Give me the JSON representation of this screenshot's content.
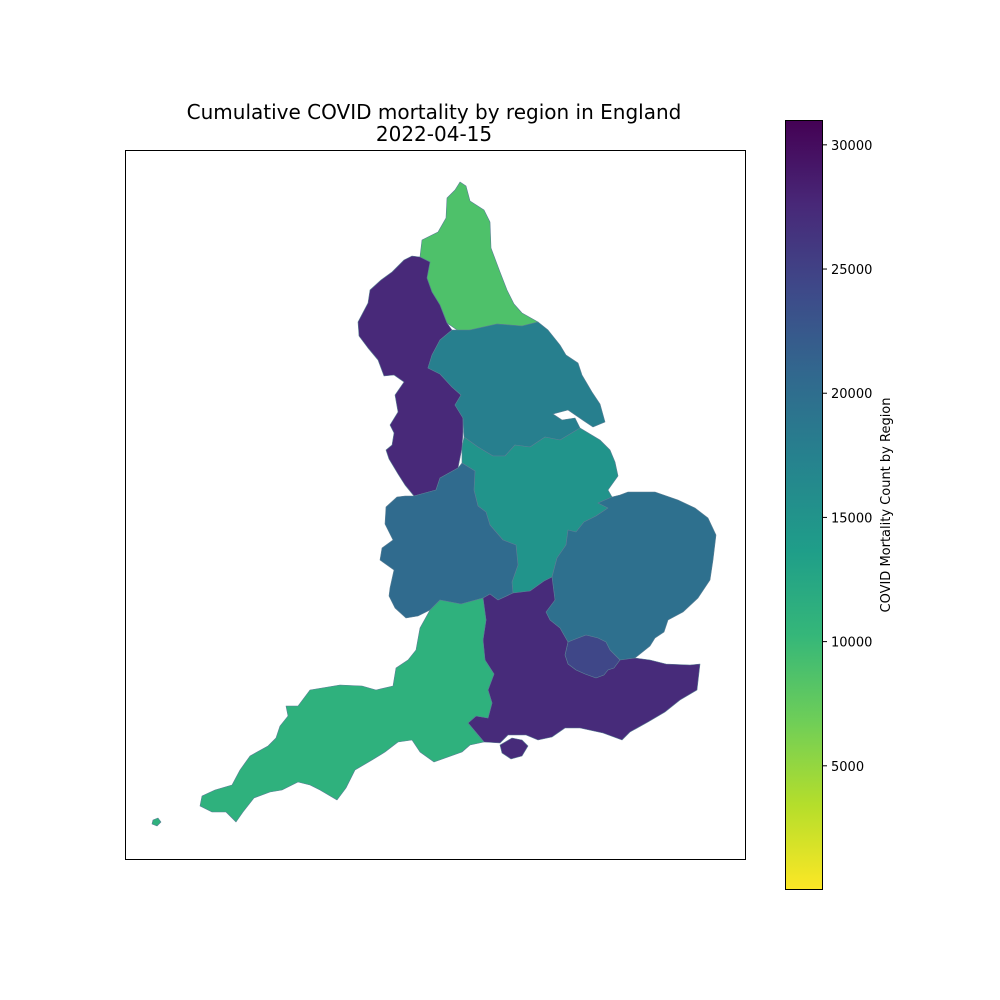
{
  "chart_data": {
    "type": "choropleth",
    "title_line1": "Cumulative COVID mortality by region in England",
    "title_line2": "2022-04-15",
    "colorbar": {
      "label": "COVID Mortality Count by Region",
      "range": [
        0,
        31000
      ],
      "ticks": [
        5000,
        10000,
        15000,
        20000,
        25000,
        30000
      ],
      "tick_labels": [
        "5000",
        "10000",
        "15000",
        "20000",
        "25000",
        "30000"
      ],
      "colormap": "viridis_r",
      "stops": [
        "#fde725",
        "#b5de2b",
        "#6ece58",
        "#35b779",
        "#1f9e89",
        "#26828e",
        "#31688e",
        "#3e4989",
        "#482878",
        "#440154"
      ]
    },
    "regions": [
      {
        "key": "north-east",
        "value": 8800
      },
      {
        "key": "north-west",
        "value": 27400
      },
      {
        "key": "yorkshire-and-the-humber",
        "value": 17600
      },
      {
        "key": "east-midlands",
        "value": 15000
      },
      {
        "key": "west-midlands",
        "value": 20300
      },
      {
        "key": "east-of-england",
        "value": 19600
      },
      {
        "key": "london",
        "value": 24300
      },
      {
        "key": "south-east",
        "value": 27200
      },
      {
        "key": "south-west",
        "value": 11200
      }
    ]
  }
}
